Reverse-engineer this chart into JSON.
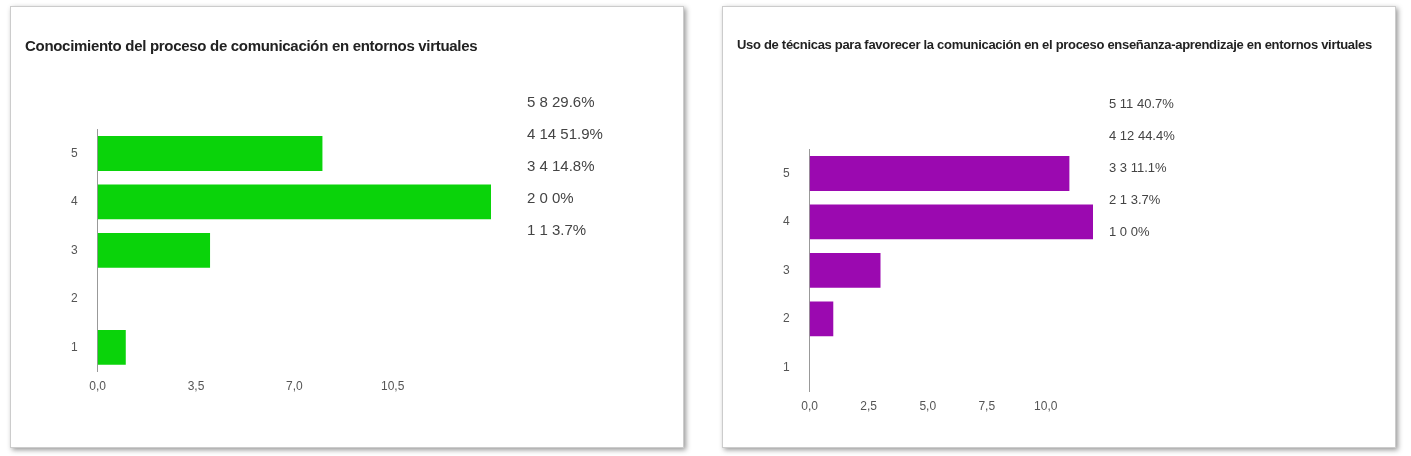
{
  "chart_data": [
    {
      "type": "bar",
      "orientation": "horizontal",
      "title": "Conocimiento del proceso de  comunicación en entornos virtuales",
      "categories": [
        "5",
        "4",
        "3",
        "2",
        "1"
      ],
      "values": [
        8,
        14,
        4,
        0,
        1
      ],
      "color": "#0ad30a",
      "xlim": [
        0,
        14
      ],
      "xticks": [
        {
          "value": 0,
          "label": "0,0"
        },
        {
          "value": 3.5,
          "label": "3,5"
        },
        {
          "value": 7,
          "label": "7,0"
        },
        {
          "value": 10.5,
          "label": "10,5"
        }
      ],
      "grid": false,
      "legend": false,
      "annotations": [
        "5 8 29.6%",
        "4 14 51.9%",
        "3 4 14.8%",
        "2 0 0%",
        "1 1 3.7%"
      ]
    },
    {
      "type": "bar",
      "orientation": "horizontal",
      "title": "Uso de técnicas para favorecer la comunicación en el proceso enseñanza-aprendizaje en entornos virtuales",
      "categories": [
        "5",
        "4",
        "3",
        "2",
        "1"
      ],
      "values": [
        11,
        12,
        3,
        1,
        0
      ],
      "color": "#9b09b0",
      "xlim": [
        0,
        12
      ],
      "xticks": [
        {
          "value": 0,
          "label": "0,0"
        },
        {
          "value": 2.5,
          "label": "2,5"
        },
        {
          "value": 5,
          "label": "5,0"
        },
        {
          "value": 7.5,
          "label": "7,5"
        },
        {
          "value": 10,
          "label": "10,0"
        }
      ],
      "grid": false,
      "legend": false,
      "annotations": [
        "5 11 40.7%",
        "4 12 44.4%",
        "3 3 11.1%",
        "2 1 3.7%",
        "1 0 0%"
      ]
    }
  ]
}
